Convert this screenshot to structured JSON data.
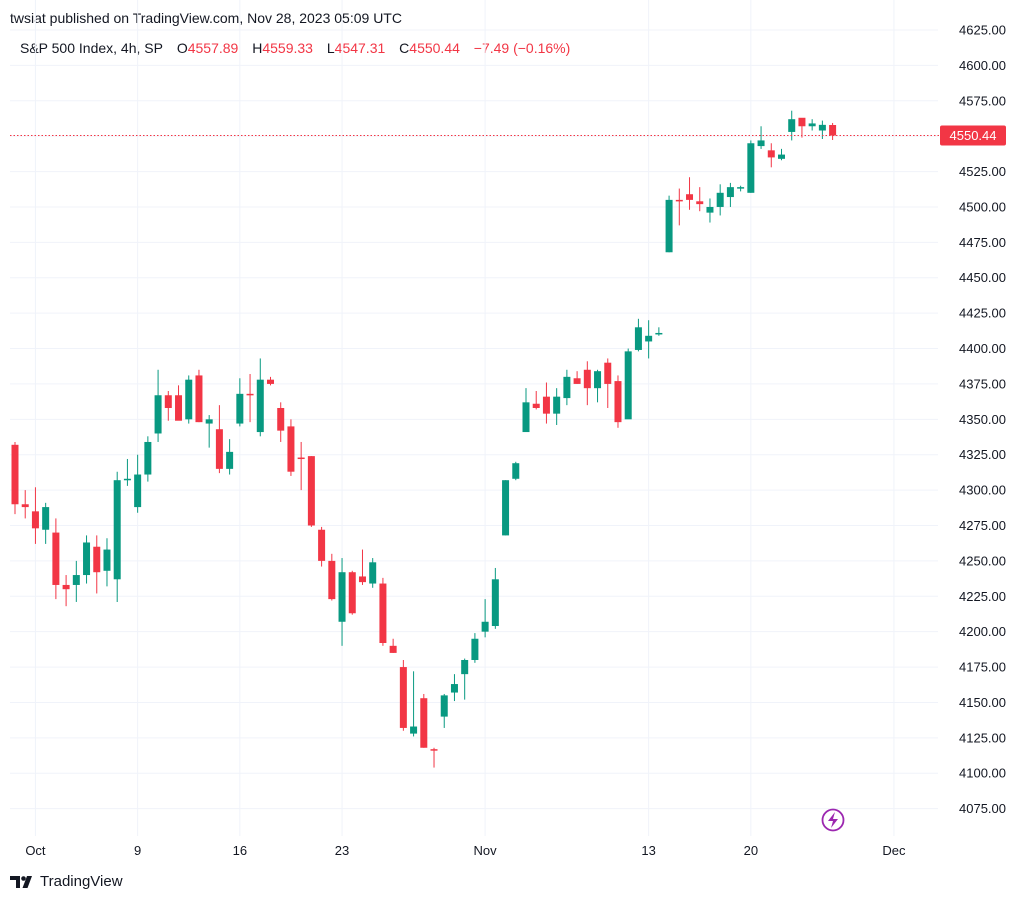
{
  "header": {
    "publisher": "twsiat published on TradingView.com, Nov 28, 2023 05:09 UTC"
  },
  "legend": {
    "symbol": "S&P 500 Index, 4h, SP",
    "o_label": "O",
    "o_value": "4557.89",
    "h_label": "H",
    "h_value": "4559.33",
    "l_label": "L",
    "l_value": "4547.31",
    "c_label": "C",
    "c_value": "4550.44",
    "change": "−7.49 (−0.16%)"
  },
  "footer": {
    "brand": "TradingView",
    "brand_icon": "tradingview-logo-icon"
  },
  "colors": {
    "up": "#089981",
    "down": "#f23645",
    "grid": "#f0f3fa",
    "text": "#131722",
    "lightning": "#9c27b0"
  },
  "chart_data": {
    "type": "candlestick",
    "title": "S&P 500 Index, 4h, SP",
    "y_axis": {
      "position": "right",
      "ylim": [
        4062,
        4628
      ],
      "ticks": [
        "4625.00",
        "4600.00",
        "4575.00",
        "4550.00",
        "4525.00",
        "4500.00",
        "4475.00",
        "4450.00",
        "4425.00",
        "4400.00",
        "4375.00",
        "4350.00",
        "4325.00",
        "4300.00",
        "4275.00",
        "4250.00",
        "4225.00",
        "4200.00",
        "4175.00",
        "4150.00",
        "4125.00",
        "4100.00",
        "4075.00"
      ]
    },
    "x_axis": {
      "ticks": [
        {
          "label": "Oct",
          "index": 2
        },
        {
          "label": "9",
          "index": 12
        },
        {
          "label": "16",
          "index": 22
        },
        {
          "label": "23",
          "index": 32
        },
        {
          "label": "Nov",
          "index": 46
        },
        {
          "label": "13",
          "index": 62
        },
        {
          "label": "20",
          "index": 72
        },
        {
          "label": "Dec",
          "index": 86
        }
      ]
    },
    "grid": true,
    "last_price": {
      "value": 4550.44,
      "label": "4550.44"
    },
    "candles": [
      {
        "o": 4332,
        "h": 4334,
        "l": 4283,
        "c": 4290
      },
      {
        "o": 4290,
        "h": 4300,
        "l": 4280,
        "c": 4288
      },
      {
        "o": 4285,
        "h": 4302,
        "l": 4262,
        "c": 4273
      },
      {
        "o": 4272,
        "h": 4291,
        "l": 4262,
        "c": 4288
      },
      {
        "o": 4270,
        "h": 4280,
        "l": 4223,
        "c": 4233
      },
      {
        "o": 4233,
        "h": 4240,
        "l": 4218,
        "c": 4230
      },
      {
        "o": 4233,
        "h": 4250,
        "l": 4221,
        "c": 4240
      },
      {
        "o": 4240,
        "h": 4268,
        "l": 4234,
        "c": 4263
      },
      {
        "o": 4260,
        "h": 4268,
        "l": 4227,
        "c": 4242
      },
      {
        "o": 4243,
        "h": 4266,
        "l": 4232,
        "c": 4258
      },
      {
        "o": 4237,
        "h": 4313,
        "l": 4221,
        "c": 4307
      },
      {
        "o": 4307,
        "h": 4322,
        "l": 4303,
        "c": 4308
      },
      {
        "o": 4288,
        "h": 4325,
        "l": 4284,
        "c": 4311
      },
      {
        "o": 4311,
        "h": 4338,
        "l": 4306,
        "c": 4334
      },
      {
        "o": 4340,
        "h": 4385,
        "l": 4334,
        "c": 4367
      },
      {
        "o": 4367,
        "h": 4370,
        "l": 4349,
        "c": 4358
      },
      {
        "o": 4367,
        "h": 4374,
        "l": 4351,
        "c": 4349
      },
      {
        "o": 4350,
        "h": 4381,
        "l": 4347,
        "c": 4378
      },
      {
        "o": 4381,
        "h": 4385,
        "l": 4348,
        "c": 4348
      },
      {
        "o": 4347,
        "h": 4353,
        "l": 4330,
        "c": 4350
      },
      {
        "o": 4343,
        "h": 4360,
        "l": 4312,
        "c": 4315
      },
      {
        "o": 4315,
        "h": 4336,
        "l": 4311,
        "c": 4327
      },
      {
        "o": 4347,
        "h": 4379,
        "l": 4345,
        "c": 4368
      },
      {
        "o": 4368,
        "h": 4382,
        "l": 4348,
        "c": 4367
      },
      {
        "o": 4341,
        "h": 4393,
        "l": 4338,
        "c": 4378
      },
      {
        "o": 4378,
        "h": 4380,
        "l": 4374,
        "c": 4375
      },
      {
        "o": 4358,
        "h": 4362,
        "l": 4334,
        "c": 4342
      },
      {
        "o": 4345,
        "h": 4350,
        "l": 4310,
        "c": 4313
      },
      {
        "o": 4323,
        "h": 4334,
        "l": 4300,
        "c": 4322
      },
      {
        "o": 4324,
        "h": 4324,
        "l": 4274,
        "c": 4275
      },
      {
        "o": 4272,
        "h": 4274,
        "l": 4246,
        "c": 4250
      },
      {
        "o": 4250,
        "h": 4255,
        "l": 4222,
        "c": 4223
      },
      {
        "o": 4207,
        "h": 4252,
        "l": 4190,
        "c": 4242
      },
      {
        "o": 4242,
        "h": 4243,
        "l": 4212,
        "c": 4213
      },
      {
        "o": 4239,
        "h": 4258,
        "l": 4233,
        "c": 4235
      },
      {
        "o": 4234,
        "h": 4252,
        "l": 4231,
        "c": 4249
      },
      {
        "o": 4234,
        "h": 4238,
        "l": 4190,
        "c": 4192
      },
      {
        "o": 4190,
        "h": 4195,
        "l": 4185,
        "c": 4185
      },
      {
        "o": 4175,
        "h": 4180,
        "l": 4130,
        "c": 4132
      },
      {
        "o": 4128,
        "h": 4172,
        "l": 4126,
        "c": 4133
      },
      {
        "o": 4153,
        "h": 4156,
        "l": 4118,
        "c": 4118
      },
      {
        "o": 4117,
        "h": 4118,
        "l": 4104,
        "c": 4116
      },
      {
        "o": 4140,
        "h": 4156,
        "l": 4132,
        "c": 4155
      },
      {
        "o": 4157,
        "h": 4170,
        "l": 4151,
        "c": 4163
      },
      {
        "o": 4170,
        "h": 4181,
        "l": 4152,
        "c": 4180
      },
      {
        "o": 4180,
        "h": 4199,
        "l": 4178,
        "c": 4195
      },
      {
        "o": 4200,
        "h": 4223,
        "l": 4196,
        "c": 4207
      },
      {
        "o": 4204,
        "h": 4245,
        "l": 4202,
        "c": 4237
      },
      {
        "o": 4268,
        "h": 4307,
        "l": 4268,
        "c": 4307
      },
      {
        "o": 4308,
        "h": 4320,
        "l": 4307,
        "c": 4319
      },
      {
        "o": 4341,
        "h": 4372,
        "l": 4341,
        "c": 4362
      },
      {
        "o": 4361,
        "h": 4370,
        "l": 4357,
        "c": 4358
      },
      {
        "o": 4366,
        "h": 4376,
        "l": 4347,
        "c": 4354
      },
      {
        "o": 4354,
        "h": 4372,
        "l": 4346,
        "c": 4366
      },
      {
        "o": 4365,
        "h": 4385,
        "l": 4360,
        "c": 4380
      },
      {
        "o": 4379,
        "h": 4384,
        "l": 4375,
        "c": 4375
      },
      {
        "o": 4385,
        "h": 4391,
        "l": 4360,
        "c": 4372
      },
      {
        "o": 4372,
        "h": 4385,
        "l": 4362,
        "c": 4384
      },
      {
        "o": 4390,
        "h": 4393,
        "l": 4358,
        "c": 4375
      },
      {
        "o": 4377,
        "h": 4381,
        "l": 4344,
        "c": 4348
      },
      {
        "o": 4350,
        "h": 4400,
        "l": 4353,
        "c": 4398
      },
      {
        "o": 4399,
        "h": 4421,
        "l": 4398,
        "c": 4415
      },
      {
        "o": 4405,
        "h": 4420,
        "l": 4393,
        "c": 4409
      },
      {
        "o": 4410,
        "h": 4415,
        "l": 4409,
        "c": 4411
      },
      {
        "o": 4468,
        "h": 4508,
        "l": 4468,
        "c": 4505
      },
      {
        "o": 4505,
        "h": 4513,
        "l": 4487,
        "c": 4504
      },
      {
        "o": 4509,
        "h": 4521,
        "l": 4498,
        "c": 4505
      },
      {
        "o": 4504,
        "h": 4514,
        "l": 4497,
        "c": 4502
      },
      {
        "o": 4496,
        "h": 4506,
        "l": 4489,
        "c": 4500
      },
      {
        "o": 4500,
        "h": 4516,
        "l": 4494,
        "c": 4510
      },
      {
        "o": 4507,
        "h": 4517,
        "l": 4500,
        "c": 4514
      },
      {
        "o": 4513,
        "h": 4515,
        "l": 4511,
        "c": 4514
      },
      {
        "o": 4510,
        "h": 4547,
        "l": 4510,
        "c": 4545
      },
      {
        "o": 4543,
        "h": 4557,
        "l": 4541,
        "c": 4547
      },
      {
        "o": 4540,
        "h": 4545,
        "l": 4528,
        "c": 4535
      },
      {
        "o": 4534,
        "h": 4541,
        "l": 4533,
        "c": 4537
      },
      {
        "o": 4553,
        "h": 4568,
        "l": 4547,
        "c": 4562
      },
      {
        "o": 4563,
        "h": 4562,
        "l": 4549,
        "c": 4557
      },
      {
        "o": 4557,
        "h": 4562,
        "l": 4554,
        "c": 4559
      },
      {
        "o": 4554,
        "h": 4561,
        "l": 4548,
        "c": 4558
      },
      {
        "o": 4557.89,
        "h": 4559.33,
        "l": 4547.31,
        "c": 4550.44
      }
    ]
  }
}
